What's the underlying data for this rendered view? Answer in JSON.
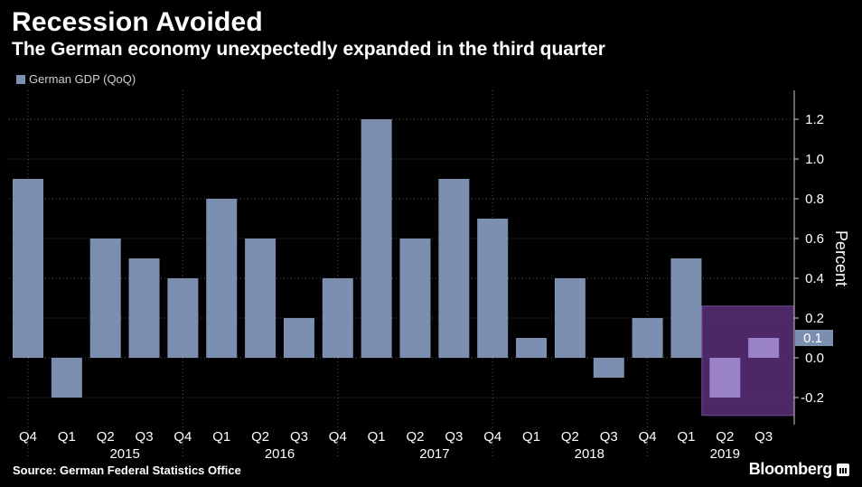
{
  "title": "Recession Avoided",
  "subtitle": "The German economy unexpectedly expanded in the third quarter",
  "source": "Source: German Federal Statistics Office",
  "brand": "Bloomberg",
  "colors": {
    "background": "#000000",
    "bar": "#7d8fb0",
    "highlight_box": "#5b2f7a",
    "highlight_bar": "#9a82c8",
    "grid": "#555555",
    "text": "#ffffff"
  },
  "chart_data": {
    "type": "bar",
    "ylabel": "Percent",
    "ylim": [
      -0.28,
      1.35
    ],
    "yticks": [
      -0.2,
      0.0,
      0.2,
      0.4,
      0.6,
      0.8,
      1.0,
      1.2
    ],
    "ytick_labels": [
      "-0.2",
      "0.0",
      "0.2",
      "0.4",
      "0.6",
      "0.8",
      "1.0",
      "1.2"
    ],
    "legend": "top-left",
    "grid": true,
    "categories": [
      "Q4",
      "Q1",
      "Q2",
      "Q3",
      "Q4",
      "Q1",
      "Q2",
      "Q3",
      "Q4",
      "Q1",
      "Q2",
      "Q3",
      "Q4",
      "Q1",
      "Q2",
      "Q3",
      "Q4",
      "Q1",
      "Q2",
      "Q3"
    ],
    "years": [
      {
        "label": "2015",
        "start": 1,
        "end": 4
      },
      {
        "label": "2016",
        "start": 5,
        "end": 8
      },
      {
        "label": "2017",
        "start": 9,
        "end": 12
      },
      {
        "label": "2018",
        "start": 13,
        "end": 16
      },
      {
        "label": "2019",
        "start": 17,
        "end": 19
      }
    ],
    "series": [
      {
        "name": "German GDP (QoQ)",
        "values": [
          0.9,
          -0.2,
          0.6,
          0.5,
          0.4,
          0.8,
          0.6,
          0.2,
          0.4,
          1.2,
          0.6,
          0.9,
          0.7,
          0.1,
          0.4,
          -0.1,
          0.2,
          0.5,
          -0.2,
          0.1
        ]
      }
    ],
    "highlight": {
      "start": 18,
      "end": 19
    },
    "last_value_label": "0.1"
  }
}
